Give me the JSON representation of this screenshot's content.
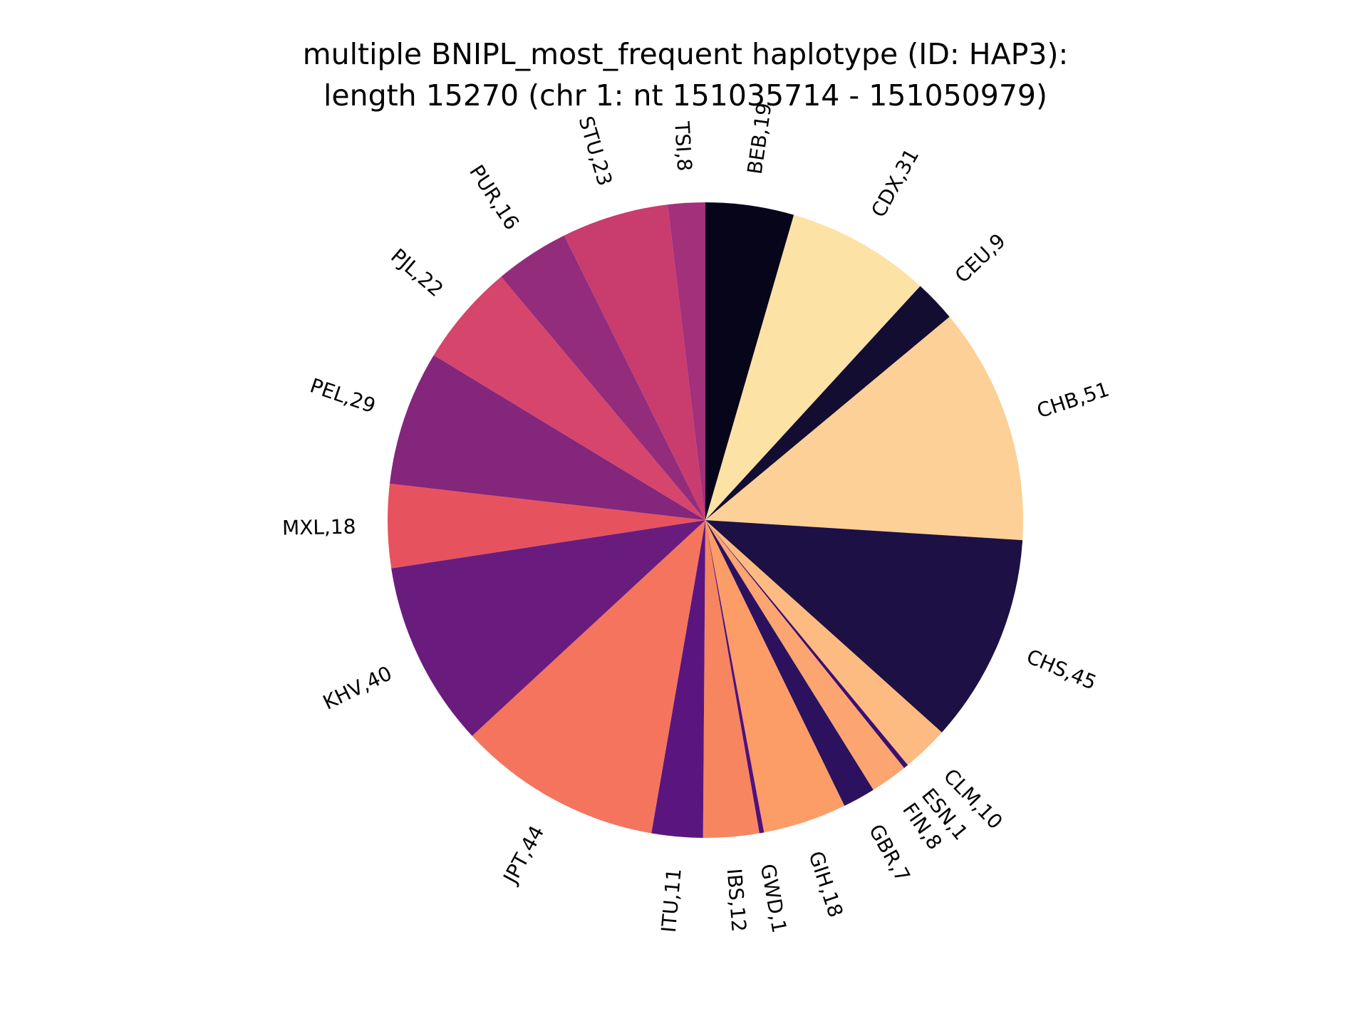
{
  "chart_data": {
    "type": "pie",
    "title": "multiple BNIPL_most_frequent haplotype (ID: HAP3):",
    "subtitle": "length 15270 (chr 1: nt 151035714 - 151050979)",
    "start_angle_deg": 90,
    "direction": "clockwise",
    "slices": [
      {
        "label": "BEB,19",
        "category": "BEB",
        "value": 19,
        "color": "#070519"
      },
      {
        "label": "CDX,31",
        "category": "CDX",
        "value": 31,
        "color": "#fde2a6"
      },
      {
        "label": "CEU,9",
        "category": "CEU",
        "value": 9,
        "color": "#120d31"
      },
      {
        "label": "CHB,51",
        "category": "CHB",
        "value": 51,
        "color": "#fcd096"
      },
      {
        "label": "CHS,45",
        "category": "CHS",
        "value": 45,
        "color": "#1c1044"
      },
      {
        "label": "CLM,10",
        "category": "CLM",
        "value": 10,
        "color": "#fdbb81"
      },
      {
        "label": "ESN,1",
        "category": "ESN",
        "value": 1,
        "color": "#3b0f70"
      },
      {
        "label": "FIN,8",
        "category": "FIN",
        "value": 8,
        "color": "#fca570"
      },
      {
        "label": "GBR,7",
        "category": "GBR",
        "value": 7,
        "color": "#2c115f"
      },
      {
        "label": "GIH,18",
        "category": "GIH",
        "value": 18,
        "color": "#fc9c66"
      },
      {
        "label": "GWD,1",
        "category": "GWD",
        "value": 1,
        "color": "#4f127b"
      },
      {
        "label": "IBS,12",
        "category": "IBS",
        "value": 12,
        "color": "#f7855f"
      },
      {
        "label": "ITU,11",
        "category": "ITU",
        "value": 11,
        "color": "#5a167e"
      },
      {
        "label": "JPT,44",
        "category": "JPT",
        "value": 44,
        "color": "#f4745e"
      },
      {
        "label": "KHV,40",
        "category": "KHV",
        "value": 40,
        "color": "#6a1c7e"
      },
      {
        "label": "MXL,18",
        "category": "MXL",
        "value": 18,
        "color": "#e6535f"
      },
      {
        "label": "PEL,29",
        "category": "PEL",
        "value": 29,
        "color": "#84267c"
      },
      {
        "label": "PJL,22",
        "category": "PJL",
        "value": 22,
        "color": "#d6456c"
      },
      {
        "label": "PUR,16",
        "category": "PUR",
        "value": 16,
        "color": "#942c7c"
      },
      {
        "label": "STU,23",
        "category": "STU",
        "value": 23,
        "color": "#c83c6e"
      },
      {
        "label": "TSI,8",
        "category": "TSI",
        "value": 8,
        "color": "#a2307a"
      }
    ]
  }
}
